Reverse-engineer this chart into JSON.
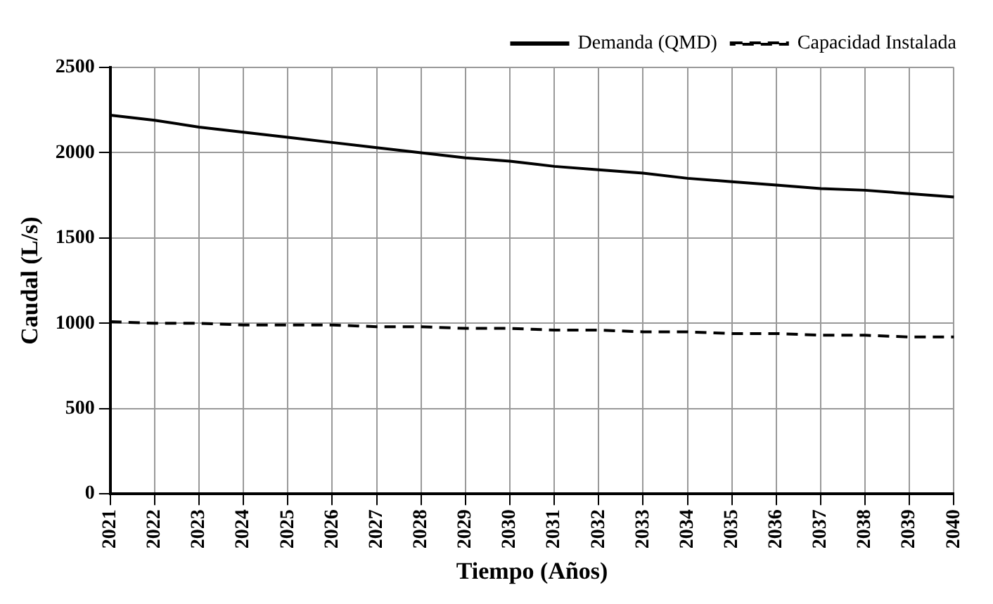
{
  "chart_data": {
    "type": "line",
    "xlabel": "Tiempo (Años)",
    "ylabel": "Caudal (L/s)",
    "categories": [
      "2021",
      "2022",
      "2023",
      "2024",
      "2025",
      "2026",
      "2027",
      "2028",
      "2029",
      "2030",
      "2031",
      "2032",
      "2033",
      "2034",
      "2035",
      "2036",
      "2037",
      "2038",
      "2039",
      "2040"
    ],
    "series": [
      {
        "name": "Demanda (QMD)",
        "color": "#000000",
        "line_style": "solid",
        "values": [
          2220,
          2190,
          2150,
          2120,
          2090,
          2060,
          2030,
          2000,
          1970,
          1950,
          1920,
          1900,
          1880,
          1850,
          1830,
          1810,
          1790,
          1780,
          1760,
          1740
        ]
      },
      {
        "name": "Capacidad Instalada",
        "color": "#000000",
        "line_style": "dashed",
        "values": [
          1010,
          1000,
          1000,
          990,
          990,
          990,
          980,
          980,
          970,
          970,
          960,
          960,
          950,
          950,
          940,
          940,
          930,
          930,
          920,
          920
        ]
      }
    ],
    "ylim": [
      0,
      2500
    ],
    "yticks": [
      0,
      500,
      1000,
      1500,
      2000,
      2500
    ],
    "grid": true,
    "legend": "top right",
    "marker": "none"
  }
}
